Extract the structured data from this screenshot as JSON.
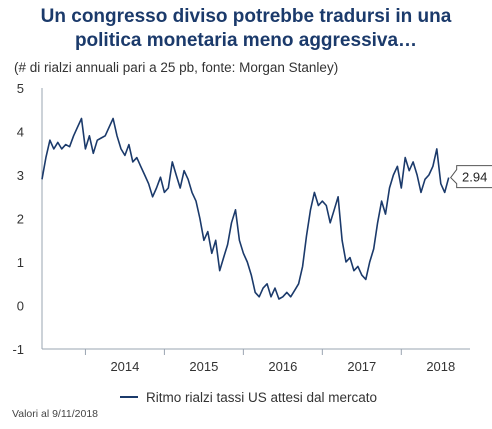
{
  "title_line1": "Un congresso diviso potrebbe tradursi in una",
  "title_line2": "politica monetaria meno aggressiva…",
  "subtitle": "(# di rialzi annuali pari a 25 pb, fonte: Morgan Stanley)",
  "footnote": "Valori al 9/11/2018",
  "colors": {
    "line": "#1b3a6b",
    "title": "#1b3a6b",
    "axis": "#9aa4b1"
  },
  "chart_data": {
    "type": "line",
    "title": "Un congresso diviso potrebbe tradursi in una politica monetaria meno aggressiva…",
    "subtitle": "(# di rialzi annuali pari a 25 pb, fonte: Morgan Stanley)",
    "xlabel": "",
    "ylabel": "",
    "xlim": [
      2013.45,
      2018.87
    ],
    "ylim": [
      -1,
      5
    ],
    "y_ticks": [
      -1,
      0,
      1,
      2,
      3,
      4,
      5
    ],
    "x_ticks": [
      2014,
      2015,
      2016,
      2017,
      2018
    ],
    "grid": false,
    "legend_position": "bottom",
    "last_value_label": "2.94",
    "series": [
      {
        "name": "Ritmo rialzi tassi US attesi dal mercato",
        "x": [
          2013.45,
          2013.5,
          2013.55,
          2013.6,
          2013.65,
          2013.7,
          2013.75,
          2013.8,
          2013.85,
          2013.9,
          2013.95,
          2014.0,
          2014.05,
          2014.1,
          2014.15,
          2014.2,
          2014.25,
          2014.3,
          2014.35,
          2014.4,
          2014.45,
          2014.5,
          2014.55,
          2014.6,
          2014.65,
          2014.7,
          2014.75,
          2014.8,
          2014.85,
          2014.9,
          2014.95,
          2015.0,
          2015.05,
          2015.1,
          2015.15,
          2015.2,
          2015.25,
          2015.3,
          2015.35,
          2015.4,
          2015.45,
          2015.5,
          2015.55,
          2015.6,
          2015.65,
          2015.7,
          2015.75,
          2015.8,
          2015.85,
          2015.9,
          2015.95,
          2016.0,
          2016.05,
          2016.1,
          2016.15,
          2016.2,
          2016.25,
          2016.3,
          2016.35,
          2016.4,
          2016.45,
          2016.5,
          2016.55,
          2016.6,
          2016.65,
          2016.7,
          2016.75,
          2016.8,
          2016.85,
          2016.9,
          2016.95,
          2017.0,
          2017.05,
          2017.1,
          2017.15,
          2017.2,
          2017.25,
          2017.3,
          2017.35,
          2017.4,
          2017.45,
          2017.5,
          2017.55,
          2017.6,
          2017.65,
          2017.7,
          2017.75,
          2017.8,
          2017.85,
          2017.9,
          2017.95,
          2018.0,
          2018.05,
          2018.1,
          2018.15,
          2018.2,
          2018.25,
          2018.3,
          2018.35,
          2018.4,
          2018.45,
          2018.5,
          2018.55,
          2018.6
        ],
        "values": [
          2.9,
          3.4,
          3.8,
          3.6,
          3.75,
          3.6,
          3.7,
          3.65,
          3.9,
          4.1,
          4.3,
          3.6,
          3.9,
          3.5,
          3.8,
          3.85,
          3.9,
          4.1,
          4.3,
          3.9,
          3.6,
          3.45,
          3.7,
          3.3,
          3.4,
          3.2,
          3.0,
          2.8,
          2.5,
          2.7,
          2.95,
          2.6,
          2.7,
          3.3,
          3.0,
          2.7,
          3.1,
          2.9,
          2.6,
          2.4,
          2.0,
          1.5,
          1.7,
          1.2,
          1.5,
          0.8,
          1.1,
          1.4,
          1.9,
          2.2,
          1.5,
          1.2,
          1.0,
          0.7,
          0.3,
          0.2,
          0.4,
          0.5,
          0.2,
          0.4,
          0.15,
          0.2,
          0.3,
          0.2,
          0.35,
          0.5,
          0.9,
          1.6,
          2.2,
          2.6,
          2.3,
          2.4,
          2.3,
          1.9,
          2.2,
          2.5,
          1.5,
          1.0,
          1.1,
          0.8,
          0.9,
          0.7,
          0.6,
          1.0,
          1.3,
          1.9,
          2.4,
          2.1,
          2.7,
          3.0,
          3.2,
          2.7,
          3.4,
          3.1,
          3.3,
          3.0,
          2.6,
          2.9,
          3.0,
          3.2,
          3.6,
          2.8,
          2.6,
          2.94
        ]
      }
    ]
  },
  "legend": {
    "label": "Ritmo rialzi tassi US attesi dal mercato"
  }
}
